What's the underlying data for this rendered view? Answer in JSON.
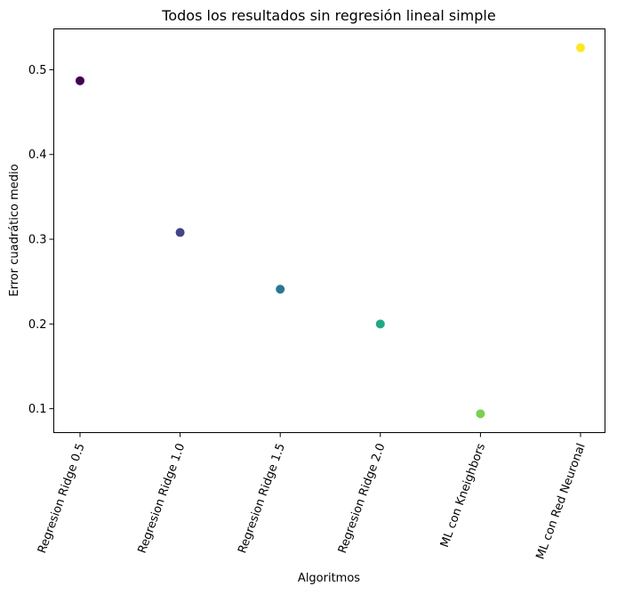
{
  "chart_data": {
    "type": "scatter",
    "title": "Todos los resultados sin regresión lineal simple",
    "xlabel": "Algoritmos",
    "ylabel": "Error cuadrático medio",
    "categories": [
      "Regresion Ridge 0.5",
      "Regresion Ridge 1.0",
      "Regresion Ridge 1.5",
      "Regresion Ridge 2.0",
      "ML con Kneighbors",
      "ML con Red Neuronal"
    ],
    "values": [
      0.487,
      0.308,
      0.241,
      0.2,
      0.094,
      0.526
    ],
    "point_colors": [
      "#440154",
      "#414487",
      "#2a788e",
      "#22a884",
      "#7ad151",
      "#fde725"
    ],
    "yticks": [
      0.1,
      0.2,
      0.3,
      0.4,
      0.5
    ],
    "ytick_labels": [
      "0.1",
      "0.2",
      "0.3",
      "0.4",
      "0.5"
    ],
    "ylim": [
      0.0718,
      0.5482
    ],
    "grid": false,
    "legend": "none"
  }
}
